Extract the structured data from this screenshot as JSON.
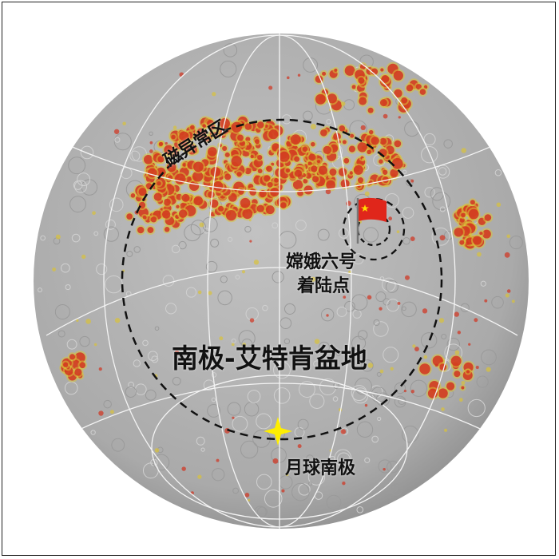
{
  "labels": {
    "magnetic_anomaly": "磁异常区",
    "landing_site_line1": "嫦娥六号",
    "landing_site_line2": "着陆点",
    "basin": "南极-艾特肯盆地",
    "south_pole": "月球南极"
  },
  "colors": {
    "moon_surface": "#b4b4b4",
    "anomaly_red": "#d2321e",
    "anomaly_yellow": "#d8c23a",
    "pole_star": "#ffee00",
    "flag_red": "#e0261b"
  },
  "icons": [
    "china-flag-icon",
    "south-pole-star-icon"
  ]
}
